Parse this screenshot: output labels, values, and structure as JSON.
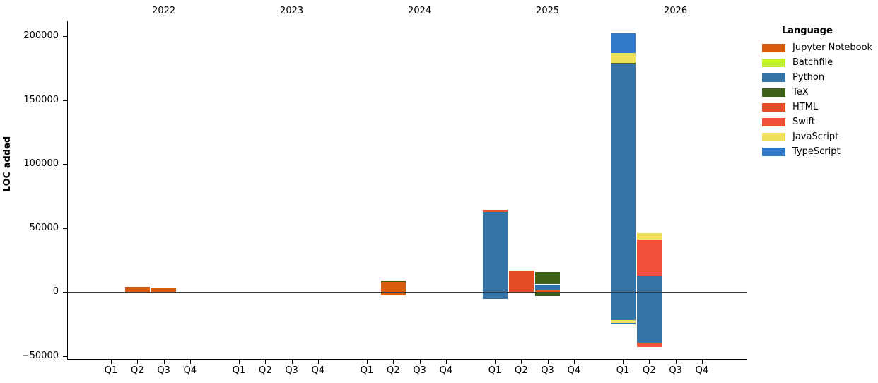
{
  "chart_data": {
    "type": "bar",
    "stacked": true,
    "ylabel": "LOC added",
    "ylim": [
      -53000,
      213000
    ],
    "yticks": [
      -50000,
      0,
      50000,
      100000,
      150000,
      200000
    ],
    "years": [
      "2022",
      "2023",
      "2024",
      "2025",
      "2026"
    ],
    "quarter_labels": [
      "Q1",
      "Q2",
      "Q3",
      "Q4"
    ],
    "grid": false,
    "legend": {
      "title": "Language",
      "position": "upper right, outside plot",
      "entries": [
        {
          "label": "Jupyter Notebook",
          "color": "#DA5B0B"
        },
        {
          "label": "Batchfile",
          "color": "#C1F12E"
        },
        {
          "label": "Python",
          "color": "#3572A5"
        },
        {
          "label": "TeX",
          "color": "#3D6117"
        },
        {
          "label": "HTML",
          "color": "#E34C26"
        },
        {
          "label": "Swift",
          "color": "#F05138"
        },
        {
          "label": "JavaScript",
          "color": "#F1E05A"
        },
        {
          "label": "TypeScript",
          "color": "#3178C6"
        }
      ]
    },
    "bars": [
      {
        "year": "2022",
        "quarter": "Q2",
        "segments": [
          {
            "language": "Jupyter Notebook",
            "value": 4000
          }
        ]
      },
      {
        "year": "2022",
        "quarter": "Q3",
        "segments": [
          {
            "language": "Jupyter Notebook",
            "value": 2800
          }
        ]
      },
      {
        "year": "2024",
        "quarter": "Q2",
        "segments": [
          {
            "language": "Jupyter Notebook",
            "value": 7600
          },
          {
            "language": "TeX",
            "value": 1100
          },
          {
            "language": "Jupyter Notebook",
            "value": -2000
          }
        ]
      },
      {
        "year": "2025",
        "quarter": "Q1",
        "segments": [
          {
            "language": "Python",
            "value": 62400
          },
          {
            "language": "HTML",
            "value": 1600
          },
          {
            "language": "Python",
            "value": -5000
          }
        ]
      },
      {
        "year": "2025",
        "quarter": "Q2",
        "segments": [
          {
            "language": "HTML",
            "value": 16600
          }
        ]
      },
      {
        "year": "2025",
        "quarter": "Q3",
        "segments": [
          {
            "language": "Jupyter Notebook",
            "value": 1100
          },
          {
            "language": "Python",
            "value": 4700
          },
          {
            "language": "TeX",
            "value": 9800
          },
          {
            "language": "TeX",
            "value": -2800
          }
        ]
      },
      {
        "year": "2026",
        "quarter": "Q1",
        "segments": [
          {
            "language": "Python",
            "value": 177900
          },
          {
            "language": "TeX",
            "value": 1100
          },
          {
            "language": "JavaScript",
            "value": 7700
          },
          {
            "language": "TypeScript",
            "value": 15500
          },
          {
            "language": "Python",
            "value": -21500
          },
          {
            "language": "JavaScript",
            "value": -2200
          },
          {
            "language": "TypeScript",
            "value": -1100
          }
        ]
      },
      {
        "year": "2026",
        "quarter": "Q2",
        "segments": [
          {
            "language": "Python",
            "value": 12700
          },
          {
            "language": "Swift",
            "value": 28200
          },
          {
            "language": "JavaScript",
            "value": 5000
          },
          {
            "language": "Python",
            "value": -39200
          },
          {
            "language": "Swift",
            "value": -3300
          }
        ]
      }
    ]
  }
}
